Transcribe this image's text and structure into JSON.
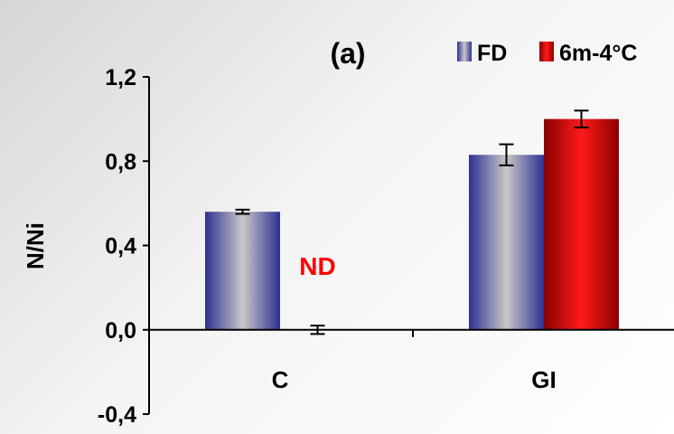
{
  "chart_data": {
    "type": "bar",
    "title": "(a)",
    "xlabel": "",
    "ylabel": "N/Ni",
    "categories": [
      "C",
      "GI"
    ],
    "series": [
      {
        "name": "FD",
        "values": [
          0.56,
          0.83
        ],
        "errors": [
          0.01,
          0.05
        ],
        "colors": [
          "#2e3192",
          "#c8c8c8"
        ]
      },
      {
        "name": "6m-4°C",
        "values": [
          0.0,
          1.0
        ],
        "errors": [
          0.02,
          0.04
        ],
        "colors": [
          "#8a0000",
          "#ff1a1a"
        ]
      }
    ],
    "ylim": [
      -0.4,
      1.2
    ],
    "yticks": [
      -0.4,
      0.0,
      0.4,
      0.8,
      1.2
    ],
    "ytick_labels": [
      "-0,4",
      "0,0",
      "0,4",
      "0,8",
      "1,2"
    ],
    "annotations": [
      {
        "text": "ND",
        "category": "C",
        "series": "6m-4°C",
        "y": 0.26,
        "color": "#ff0000"
      }
    ],
    "legend": {
      "placement": "top-right"
    },
    "grid": false
  }
}
